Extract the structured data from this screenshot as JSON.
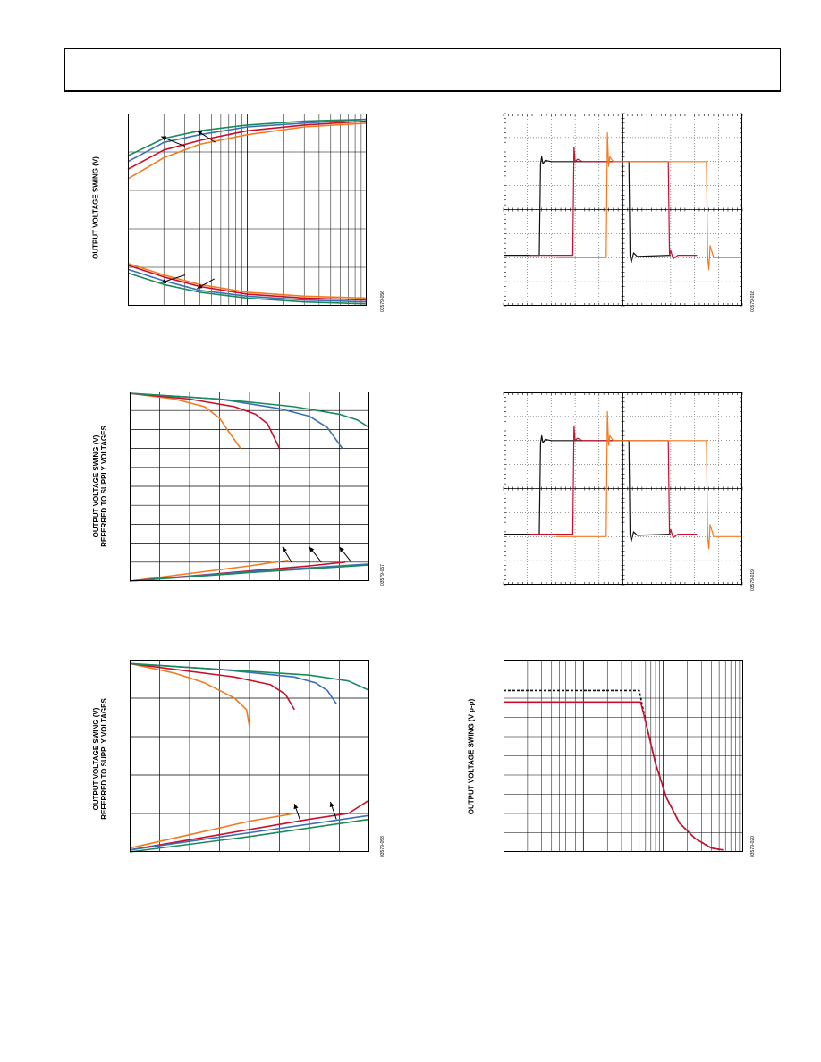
{
  "page": {
    "header_text": ""
  },
  "colors": {
    "orange": "#f47a20",
    "red": "#c8102e",
    "blue": "#3b6fb6",
    "green": "#1a8a5a",
    "black": "#111111",
    "grid": "#000000"
  },
  "chart_data": [
    {
      "id": "p1",
      "type": "line",
      "ylabel": "OUTPUT VOLTAGE SWING (V)",
      "fig_id": "03579-056",
      "xscale": "log",
      "xlim": [
        1,
        100
      ],
      "ylim": [
        0,
        100
      ],
      "grid": "log-x",
      "series": [
        {
          "color": "orange",
          "x": [
            1,
            2,
            4,
            10,
            30,
            100
          ],
          "y": [
            66,
            77,
            84,
            89,
            93,
            95
          ]
        },
        {
          "color": "red",
          "x": [
            1,
            2,
            4,
            10,
            30,
            100
          ],
          "y": [
            71,
            81,
            86,
            91,
            94,
            96
          ]
        },
        {
          "color": "blue",
          "x": [
            1,
            2,
            4,
            10,
            30,
            100
          ],
          "y": [
            75,
            85,
            89,
            93,
            95,
            97
          ]
        },
        {
          "color": "green",
          "x": [
            1,
            2,
            4,
            10,
            30,
            100
          ],
          "y": [
            78,
            87,
            91,
            94,
            96,
            97
          ]
        },
        {
          "color": "orange",
          "x": [
            1,
            2,
            4,
            10,
            30,
            100
          ],
          "y": [
            22,
            16,
            11,
            7,
            5,
            4
          ]
        },
        {
          "color": "red",
          "x": [
            1,
            2,
            4,
            10,
            30,
            100
          ],
          "y": [
            21,
            15,
            10,
            6,
            4,
            3
          ]
        },
        {
          "color": "blue",
          "x": [
            1,
            2,
            4,
            10,
            30,
            100
          ],
          "y": [
            19,
            13,
            8,
            5,
            3,
            2
          ]
        },
        {
          "color": "green",
          "x": [
            1,
            2,
            4,
            10,
            30,
            100
          ],
          "y": [
            17,
            11,
            7,
            4,
            2,
            1
          ]
        }
      ],
      "arrows": [
        [
          1.9,
          88,
          3.0,
          83
        ],
        [
          3.8,
          91,
          5.4,
          85
        ],
        [
          1.9,
          12,
          3.0,
          16
        ],
        [
          3.8,
          9,
          5.3,
          14
        ]
      ]
    },
    {
      "id": "p2",
      "type": "line",
      "ylabel": "OUTPUT VOLTAGE SWING (V)\nREFERRED TO SUPPLY VOLTAGES",
      "fig_id": "03579-057",
      "xscale": "linear",
      "xlim": [
        0,
        8
      ],
      "ylim": [
        0,
        100
      ],
      "grid": "8x10",
      "series": [
        {
          "color": "orange",
          "x": [
            0,
            1.5,
            2.5,
            3.0,
            3.3,
            3.7
          ],
          "y": [
            99,
            96,
            92,
            86,
            79,
            70
          ]
        },
        {
          "color": "red",
          "x": [
            0,
            2.0,
            3.5,
            4.2,
            4.6,
            5.0
          ],
          "y": [
            99,
            96,
            92,
            88,
            83,
            70
          ]
        },
        {
          "color": "blue",
          "x": [
            0,
            3.0,
            5.0,
            6.0,
            6.6,
            7.1
          ],
          "y": [
            99,
            96,
            91,
            87,
            81,
            70
          ]
        },
        {
          "color": "green",
          "x": [
            0,
            3.0,
            5.5,
            7.0,
            7.6,
            8.0
          ],
          "y": [
            99,
            96,
            92,
            88,
            85,
            81
          ]
        },
        {
          "color": "orange",
          "x": [
            0,
            2,
            4,
            5.3
          ],
          "y": [
            0,
            4,
            8,
            11
          ]
        },
        {
          "color": "red",
          "x": [
            0,
            3,
            6,
            7.2
          ],
          "y": [
            0,
            4,
            8,
            10
          ]
        },
        {
          "color": "blue",
          "x": [
            0,
            4,
            8
          ],
          "y": [
            0,
            5,
            9
          ]
        },
        {
          "color": "green",
          "x": [
            0,
            4,
            8
          ],
          "y": [
            0,
            4.5,
            8.5
          ]
        }
      ],
      "arrows": [
        [
          5.1,
          18,
          5.4,
          10
        ],
        [
          6.0,
          18,
          6.4,
          10
        ],
        [
          7.0,
          18,
          7.4,
          10
        ]
      ]
    },
    {
      "id": "p3",
      "type": "line",
      "ylabel": "OUTPUT VOLTAGE SWING (V)\nREFERRED TO SUPPLY VOLTAGES",
      "fig_id": "03579-058",
      "xscale": "linear",
      "xlim": [
        0,
        8
      ],
      "ylim": [
        0,
        100
      ],
      "grid": "8x5",
      "series": [
        {
          "color": "orange",
          "x": [
            0,
            1.5,
            2.5,
            3.5,
            3.9,
            4.0
          ],
          "y": [
            98,
            93,
            88,
            80,
            74,
            65
          ]
        },
        {
          "color": "red",
          "x": [
            0,
            2.0,
            3.5,
            4.7,
            5.2,
            5.5
          ],
          "y": [
            98,
            94,
            91,
            87,
            82,
            74
          ]
        },
        {
          "color": "blue",
          "x": [
            0,
            3.0,
            5.5,
            6.2,
            6.6,
            6.9
          ],
          "y": [
            98,
            95,
            91,
            88,
            84,
            77
          ]
        },
        {
          "color": "green",
          "x": [
            0,
            3.0,
            6.0,
            7.3,
            8.0
          ],
          "y": [
            98,
            95,
            92,
            89,
            84
          ]
        },
        {
          "color": "orange",
          "x": [
            0,
            2,
            4,
            5.5
          ],
          "y": [
            2,
            9,
            16,
            20
          ]
        },
        {
          "color": "red",
          "x": [
            0,
            3,
            6,
            7.3,
            8
          ],
          "y": [
            1,
            9,
            17,
            20,
            27
          ]
        },
        {
          "color": "blue",
          "x": [
            0,
            4,
            8
          ],
          "y": [
            1,
            10,
            19
          ]
        },
        {
          "color": "green",
          "x": [
            0,
            4,
            8
          ],
          "y": [
            0,
            8,
            17
          ]
        }
      ],
      "arrows": [
        [
          5.5,
          25,
          5.7,
          16
        ],
        [
          6.7,
          26,
          6.9,
          17
        ]
      ]
    },
    {
      "id": "p4",
      "type": "line",
      "ylabel": "",
      "fig_id": "03579-018",
      "xscale": "linear",
      "xlim": [
        0,
        10
      ],
      "ylim": [
        0,
        8
      ],
      "grid": "scope",
      "series": [
        {
          "color": "black",
          "x": [
            0,
            1.5,
            1.55,
            1.6,
            1.65,
            1.75,
            2.0,
            5.25,
            5.3,
            5.35,
            5.45,
            5.6,
            7.0
          ],
          "y": [
            2.1,
            2.1,
            5.9,
            6.2,
            5.9,
            6.05,
            6.0,
            6.0,
            2.1,
            1.8,
            2.2,
            2.05,
            2.1
          ]
        },
        {
          "color": "red",
          "x": [
            1.1,
            2.9,
            2.95,
            3.0,
            3.1,
            3.3,
            6.9,
            6.95,
            7.0,
            7.1,
            7.3,
            8.1
          ],
          "y": [
            2.1,
            2.1,
            6.6,
            6.0,
            6.1,
            6.0,
            6.0,
            2.1,
            2.3,
            1.95,
            2.1,
            2.1
          ]
        },
        {
          "color": "orange",
          "x": [
            2.2,
            4.3,
            4.35,
            4.4,
            4.45,
            4.6,
            8.5,
            8.55,
            8.6,
            8.65,
            8.8,
            10
          ],
          "y": [
            2.0,
            2.0,
            7.2,
            5.8,
            6.2,
            6.0,
            6.0,
            2.0,
            1.5,
            2.5,
            2.0,
            2.0
          ]
        }
      ],
      "arrows": []
    },
    {
      "id": "p5",
      "type": "line",
      "ylabel": "",
      "fig_id": "03579-019",
      "xscale": "linear",
      "xlim": [
        0,
        10
      ],
      "ylim": [
        0,
        8
      ],
      "grid": "scope",
      "series": [
        {
          "color": "black",
          "x": [
            0,
            1.5,
            1.55,
            1.6,
            1.65,
            1.75,
            2.0,
            5.25,
            5.3,
            5.35,
            5.45,
            5.6,
            7.0
          ],
          "y": [
            2.1,
            2.1,
            5.9,
            6.2,
            5.9,
            6.05,
            6.0,
            6.0,
            2.1,
            1.8,
            2.2,
            2.05,
            2.1
          ]
        },
        {
          "color": "red",
          "x": [
            1.1,
            2.9,
            2.95,
            3.0,
            3.1,
            3.3,
            6.9,
            6.95,
            7.0,
            7.1,
            7.3,
            8.1
          ],
          "y": [
            2.1,
            2.1,
            6.6,
            6.0,
            6.1,
            6.0,
            6.0,
            2.1,
            2.3,
            1.95,
            2.1,
            2.1
          ]
        },
        {
          "color": "orange",
          "x": [
            2.2,
            4.3,
            4.35,
            4.4,
            4.45,
            4.6,
            8.5,
            8.55,
            8.6,
            8.65,
            8.8,
            10
          ],
          "y": [
            2.0,
            2.0,
            7.2,
            5.8,
            6.2,
            6.0,
            6.0,
            2.0,
            1.5,
            2.5,
            2.0,
            2.0
          ]
        }
      ],
      "arrows": []
    },
    {
      "id": "p6",
      "type": "line",
      "ylabel": "OUTPUT VOLTAGE SWING (V p-p)",
      "fig_id": "03579-020",
      "xscale": "log",
      "xlim": [
        1,
        1000
      ],
      "ylim": [
        0,
        100
      ],
      "grid": "log-x",
      "series": [
        {
          "color": "black",
          "dash": true,
          "x": [
            1,
            50,
            60,
            80,
            110,
            160,
            250,
            400,
            560
          ],
          "y": [
            84,
            84,
            68,
            46,
            28,
            15,
            7,
            2,
            1
          ]
        },
        {
          "color": "red",
          "x": [
            1,
            52,
            60,
            80,
            110,
            160,
            250,
            400,
            560
          ],
          "y": [
            78,
            78,
            68,
            46,
            28,
            15,
            7,
            2,
            1
          ]
        }
      ],
      "arrows": []
    }
  ]
}
